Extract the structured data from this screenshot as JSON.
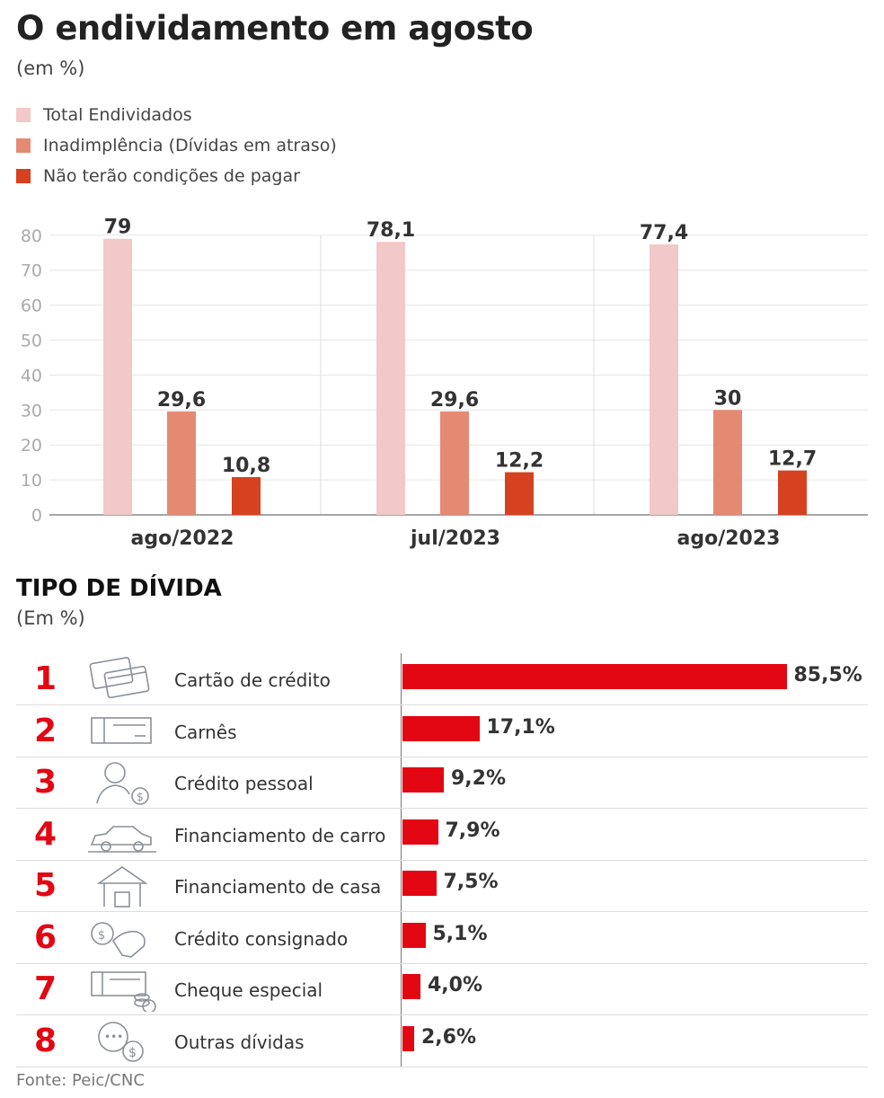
{
  "title": "O endividamento em agosto",
  "unit": "(em %)",
  "legend": [
    {
      "label": "Total Endividados",
      "color": "#f2c8c8"
    },
    {
      "label": "Inadimplência (Dívidas em atraso)",
      "color": "#e58a72"
    },
    {
      "label": "Não terão condições de pagar",
      "color": "#d6411f"
    }
  ],
  "chart_data": [
    {
      "type": "bar",
      "categories": [
        "ago/2022",
        "jul/2023",
        "ago/2023"
      ],
      "series": [
        {
          "name": "Total Endividados",
          "values": [
            79,
            78.1,
            77.4
          ],
          "labels": [
            "79",
            "78,1",
            "77,4"
          ],
          "color": "#f2c8c8"
        },
        {
          "name": "Inadimplência (Dívidas em atraso)",
          "values": [
            29.6,
            29.6,
            30
          ],
          "labels": [
            "29,6",
            "29,6",
            "30"
          ],
          "color": "#e58a72"
        },
        {
          "name": "Não terão condições de pagar",
          "values": [
            10.8,
            12.2,
            12.7
          ],
          "labels": [
            "10,8",
            "12,2",
            "12,7"
          ],
          "color": "#d6411f"
        }
      ],
      "yticks": [
        "0",
        "10",
        "20",
        "30",
        "40",
        "50",
        "60",
        "70",
        "80"
      ],
      "ylim": [
        0,
        80
      ],
      "grid": true,
      "legend_position": "top-left"
    },
    {
      "type": "bar",
      "orientation": "horizontal",
      "title": "TIPO DE DÍVIDA",
      "subtitle": "(Em %)",
      "color": "#e30613",
      "items": [
        {
          "rank": "1",
          "label": "Cartão de crédito",
          "value": 85.5,
          "value_label": "85,5%",
          "icon": "credit-cards-icon"
        },
        {
          "rank": "2",
          "label": "Carnês",
          "value": 17.1,
          "value_label": "17,1%",
          "icon": "payment-booklet-icon"
        },
        {
          "rank": "3",
          "label": "Crédito pessoal",
          "value": 9.2,
          "value_label": "9,2%",
          "icon": "person-money-bag-icon"
        },
        {
          "rank": "4",
          "label": "Financiamento de carro",
          "value": 7.9,
          "value_label": "7,9%",
          "icon": "car-icon"
        },
        {
          "rank": "5",
          "label": "Financiamento de casa",
          "value": 7.5,
          "value_label": "7,5%",
          "icon": "house-icon"
        },
        {
          "rank": "6",
          "label": "Crédito consignado",
          "value": 5.1,
          "value_label": "5,1%",
          "icon": "handshake-money-icon"
        },
        {
          "rank": "7",
          "label": "Cheque especial",
          "value": 4.0,
          "value_label": "4,0%",
          "icon": "check-coins-icon"
        },
        {
          "rank": "8",
          "label": "Outras dívidas",
          "value": 2.6,
          "value_label": "2,6%",
          "icon": "chat-money-bag-icon"
        }
      ]
    }
  ],
  "source": "Fonte: Peic/CNC"
}
